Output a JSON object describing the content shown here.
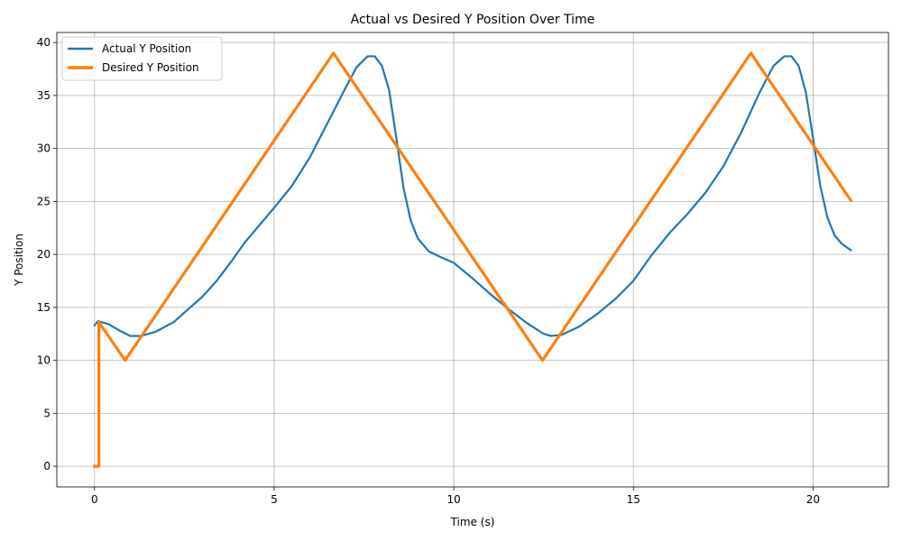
{
  "chart_data": {
    "type": "line",
    "title": "Actual vs Desired Y Position Over Time",
    "xlabel": "Time (s)",
    "ylabel": "Y Position",
    "xlim": [
      -1.05,
      22.1
    ],
    "ylim": [
      -1.95,
      40.95
    ],
    "xticks": [
      0,
      5,
      10,
      15,
      20
    ],
    "yticks": [
      0,
      5,
      10,
      15,
      20,
      25,
      30,
      35,
      40
    ],
    "grid": true,
    "legend_position": "top-left",
    "series": [
      {
        "name": "Actual Y Position",
        "color": "#1f77b4",
        "points": [
          [
            0.0,
            13.3
          ],
          [
            0.1,
            13.7
          ],
          [
            0.4,
            13.4
          ],
          [
            0.7,
            12.8
          ],
          [
            1.0,
            12.3
          ],
          [
            1.3,
            12.3
          ],
          [
            1.7,
            12.7
          ],
          [
            2.2,
            13.6
          ],
          [
            2.6,
            14.8
          ],
          [
            3.0,
            16.0
          ],
          [
            3.4,
            17.5
          ],
          [
            3.8,
            19.3
          ],
          [
            4.2,
            21.2
          ],
          [
            4.6,
            22.8
          ],
          [
            5.0,
            24.4
          ],
          [
            5.5,
            26.5
          ],
          [
            6.0,
            29.2
          ],
          [
            6.5,
            32.5
          ],
          [
            7.0,
            35.8
          ],
          [
            7.3,
            37.7
          ],
          [
            7.6,
            38.7
          ],
          [
            7.8,
            38.7
          ],
          [
            8.0,
            37.8
          ],
          [
            8.2,
            35.5
          ],
          [
            8.4,
            31.0
          ],
          [
            8.6,
            26.3
          ],
          [
            8.8,
            23.2
          ],
          [
            9.0,
            21.5
          ],
          [
            9.3,
            20.3
          ],
          [
            9.6,
            19.8
          ],
          [
            10.0,
            19.2
          ],
          [
            10.5,
            17.8
          ],
          [
            11.0,
            16.3
          ],
          [
            11.5,
            14.9
          ],
          [
            12.0,
            13.6
          ],
          [
            12.5,
            12.5
          ],
          [
            12.7,
            12.3
          ],
          [
            13.0,
            12.4
          ],
          [
            13.5,
            13.2
          ],
          [
            14.0,
            14.4
          ],
          [
            14.5,
            15.8
          ],
          [
            15.0,
            17.5
          ],
          [
            15.5,
            19.9
          ],
          [
            16.0,
            22.0
          ],
          [
            16.5,
            23.8
          ],
          [
            17.0,
            25.8
          ],
          [
            17.5,
            28.3
          ],
          [
            18.0,
            31.5
          ],
          [
            18.5,
            35.2
          ],
          [
            18.9,
            37.8
          ],
          [
            19.2,
            38.7
          ],
          [
            19.4,
            38.7
          ],
          [
            19.6,
            37.8
          ],
          [
            19.8,
            35.3
          ],
          [
            20.0,
            31.0
          ],
          [
            20.2,
            26.5
          ],
          [
            20.4,
            23.5
          ],
          [
            20.6,
            21.8
          ],
          [
            20.8,
            21.0
          ],
          [
            21.05,
            20.4
          ]
        ]
      },
      {
        "name": "Desired Y Position",
        "color": "#ff7f0e",
        "points": [
          [
            0.0,
            0.0
          ],
          [
            0.12,
            0.0
          ],
          [
            0.12,
            13.6
          ],
          [
            0.85,
            10.0
          ],
          [
            6.65,
            39.0
          ],
          [
            12.47,
            10.0
          ],
          [
            18.27,
            39.0
          ],
          [
            21.05,
            25.1
          ]
        ]
      }
    ]
  }
}
